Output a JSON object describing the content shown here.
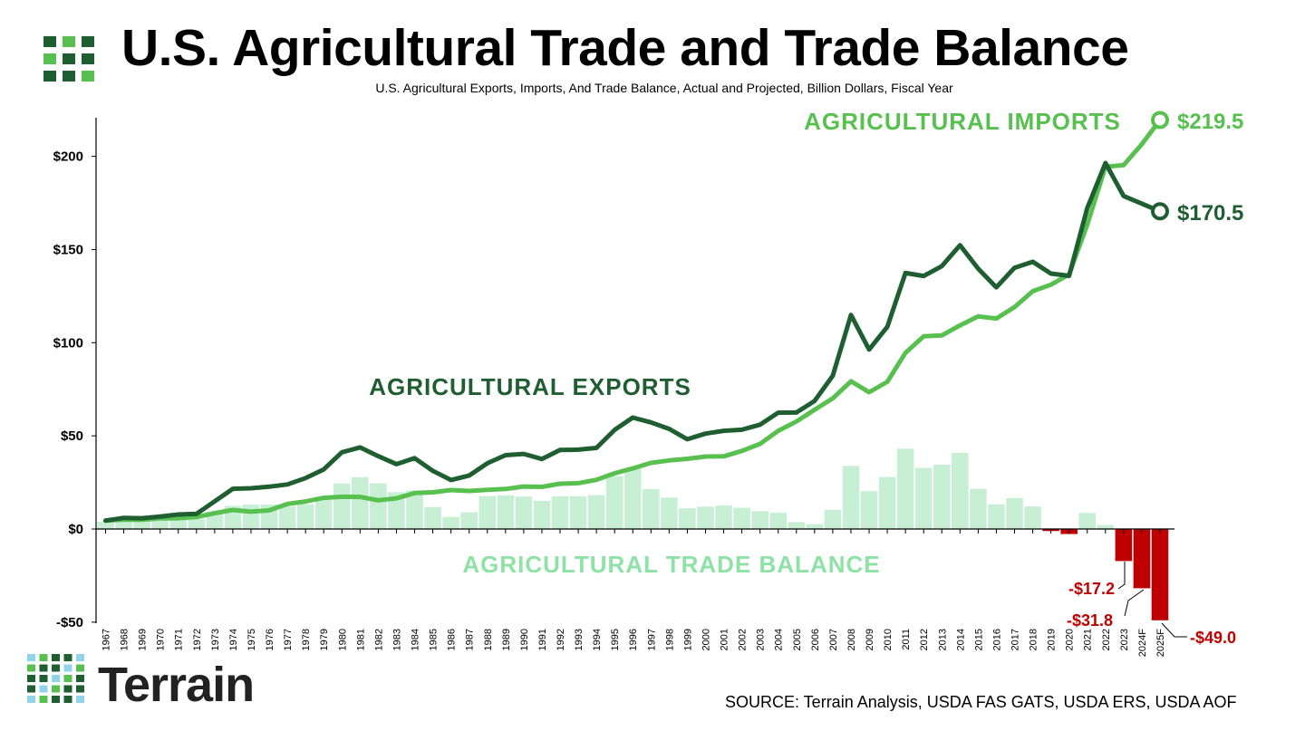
{
  "header": {
    "title": "U.S. Agricultural Trade and Trade Balance",
    "subtitle": "U.S. Agricultural Exports, Imports, And Trade Balance, Actual and Projected, Billion Dollars, Fiscal Year"
  },
  "footer": {
    "brand": "Terrain",
    "source": "SOURCE: Terrain Analysis, USDA FAS GATS, USDA ERS, USDA AOF"
  },
  "colors": {
    "exports": "#1e5e30",
    "imports": "#57c04f",
    "balance_pos": "#c6efd3",
    "balance_neg": "#c00000",
    "logo_dark": "#1e5e30",
    "logo_light": "#57c04f"
  },
  "chart_data": {
    "type": "line",
    "ylim": [
      -50,
      220
    ],
    "yticks": [
      -50,
      0,
      50,
      100,
      150,
      200
    ],
    "ytick_labels": [
      "-$50",
      "$0",
      "$50",
      "$100",
      "$150",
      "$200"
    ],
    "categories": [
      "1967",
      "1968",
      "1969",
      "1970",
      "1971",
      "1972",
      "1973",
      "1974",
      "1975",
      "1976",
      "1977",
      "1978",
      "1979",
      "1980",
      "1981",
      "1982",
      "1983",
      "1984",
      "1985",
      "1986",
      "1987",
      "1988",
      "1989",
      "1990",
      "1991",
      "1992",
      "1993",
      "1994",
      "1995",
      "1996",
      "1997",
      "1998",
      "1999",
      "2000",
      "2001",
      "2002",
      "2003",
      "2004",
      "2005",
      "2006",
      "2007",
      "2008",
      "2009",
      "2010",
      "2011",
      "2012",
      "2013",
      "2014",
      "2015",
      "2016",
      "2017",
      "2018",
      "2019",
      "2020",
      "2021",
      "2022",
      "2023",
      "2024F",
      "2025F"
    ],
    "series": [
      {
        "name": "AGRICULTURAL EXPORTS",
        "type": "line",
        "values": [
          4.5,
          6.0,
          5.8,
          6.7,
          7.8,
          8.1,
          14.9,
          21.6,
          21.9,
          22.7,
          23.9,
          27.3,
          32.0,
          41.2,
          43.8,
          39.1,
          34.8,
          38.0,
          31.2,
          26.3,
          28.7,
          35.3,
          39.6,
          40.3,
          37.6,
          42.4,
          42.6,
          43.5,
          53.2,
          59.8,
          57.2,
          53.7,
          48.2,
          51.2,
          52.7,
          53.3,
          56.0,
          62.4,
          62.5,
          68.7,
          82.2,
          114.9,
          96.3,
          108.5,
          137.4,
          135.8,
          141.1,
          152.3,
          139.7,
          129.7,
          140.2,
          143.4,
          137.1,
          135.9,
          172.2,
          196.4,
          178.7,
          174.6,
          170.5
        ]
      },
      {
        "name": "AGRICULTURAL IMPORTS",
        "type": "line",
        "values": [
          4.5,
          5.0,
          5.0,
          5.7,
          5.8,
          6.4,
          8.5,
          10.2,
          9.3,
          10.0,
          13.4,
          14.8,
          16.7,
          17.3,
          17.2,
          15.4,
          16.5,
          19.3,
          19.7,
          20.9,
          20.4,
          21.0,
          21.5,
          22.8,
          22.6,
          24.3,
          24.6,
          26.4,
          29.9,
          32.5,
          35.5,
          36.8,
          37.7,
          38.9,
          39.0,
          41.9,
          45.7,
          52.7,
          57.7,
          64.0,
          70.1,
          79.3,
          73.4,
          79.0,
          94.5,
          103.4,
          103.9,
          109.3,
          114.1,
          113.0,
          119.1,
          127.6,
          131.1,
          136.6,
          163.3,
          194.4,
          195.3,
          206.5,
          219.5
        ]
      },
      {
        "name": "AGRICULTURAL TRADE BALANCE",
        "type": "bar",
        "values": [
          4.0,
          4.3,
          4.4,
          4.7,
          4.9,
          5.4,
          9.3,
          12.4,
          13.1,
          13.1,
          12.1,
          13.3,
          15.7,
          24.4,
          27.8,
          24.5,
          19.8,
          20.6,
          11.8,
          6.5,
          9.0,
          17.7,
          18.1,
          17.4,
          15.1,
          17.5,
          17.6,
          18.2,
          28.4,
          32.2,
          21.4,
          16.9,
          11.1,
          12.0,
          12.6,
          11.4,
          9.6,
          8.8,
          3.7,
          2.6,
          10.2,
          33.9,
          20.3,
          27.9,
          43.1,
          32.8,
          34.5,
          40.9,
          21.6,
          13.3,
          16.6,
          12.1,
          -1.1,
          -2.7,
          8.6,
          2.2,
          -17.2,
          -31.8,
          -49.0
        ]
      }
    ],
    "annotations": {
      "imports_label": "AGRICULTURAL IMPORTS",
      "exports_label": "AGRICULTURAL EXPORTS",
      "balance_label": "AGRICULTURAL TRADE BALANCE",
      "imports_end": "$219.5",
      "exports_end": "$170.5",
      "deficit_2023": "-$17.2",
      "deficit_2024": "-$31.8",
      "deficit_2025": "-$49.0"
    }
  }
}
